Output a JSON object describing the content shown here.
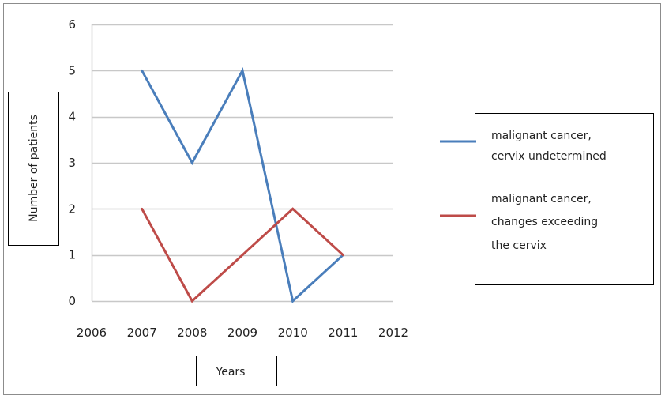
{
  "chart_data": {
    "type": "line",
    "title": "",
    "xlabel": "Years",
    "ylabel": "Number of patients",
    "x": [
      2007,
      2008,
      2009,
      2010,
      2011
    ],
    "x_ticks": [
      2006,
      2007,
      2008,
      2009,
      2010,
      2011,
      2012
    ],
    "y_ticks": [
      0,
      1,
      2,
      3,
      4,
      5,
      6
    ],
    "xlim": [
      2006,
      2012
    ],
    "ylim": [
      0,
      6
    ],
    "grid": "horizontal",
    "legend": "right",
    "series": [
      {
        "name": "malignant cancer, cervix undetermined",
        "legend_lines": [
          "malignant cancer,",
          "cervix undetermined"
        ],
        "color": "#4a7ebb",
        "values": [
          5,
          3,
          5,
          0,
          1
        ]
      },
      {
        "name": "malignant cancer, changes exceeding the cervix",
        "legend_lines": [
          "malignant cancer,",
          "changes exceeding",
          "the cervix"
        ],
        "color": "#be4b48",
        "values": [
          2,
          0,
          1,
          2,
          1
        ]
      }
    ]
  }
}
